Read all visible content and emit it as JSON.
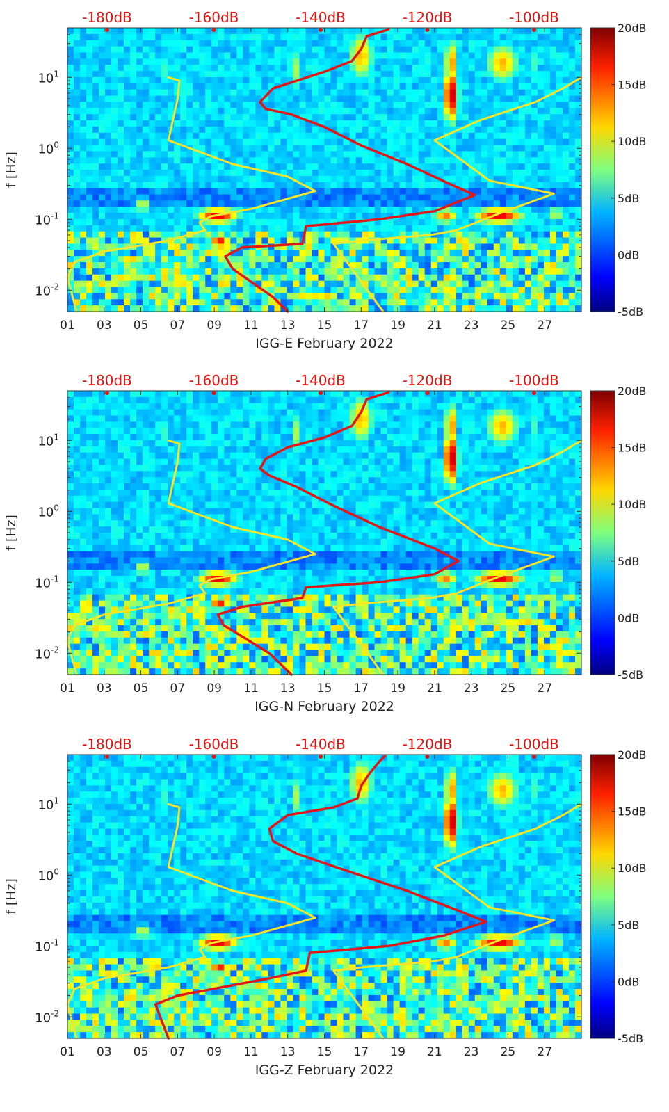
{
  "figure": {
    "colors": {
      "axis": "#333333",
      "top_labels": "#e8110f",
      "red_curve": "#e01818",
      "yellow_curve": "#f5e628"
    }
  },
  "chart_data": [
    {
      "type": "heatmap",
      "name": "IGG-E",
      "xlabel": "IGG-E February 2022",
      "ylabel": "f [Hz]",
      "x_ticks": [
        "01",
        "03",
        "05",
        "07",
        "09",
        "11",
        "13",
        "15",
        "17",
        "19",
        "21",
        "23",
        "25",
        "27"
      ],
      "y_ticks": [
        "10-2",
        "10-1",
        "100",
        "101"
      ],
      "y_log": true,
      "ylim": [
        0.005,
        50
      ],
      "xlim_days": [
        1,
        29
      ],
      "colorbar": {
        "min": -5,
        "max": 20,
        "ticks": [
          "-5dB",
          "0dB",
          "5dB",
          "10dB",
          "15dB",
          "20dB"
        ],
        "colormap": "jet"
      },
      "top_axis_labels": [
        "-180dB",
        "-160dB",
        "-140dB",
        "-120dB",
        "-100dB"
      ],
      "red_curve": {
        "x": [
          13.0,
          12.2,
          10.0,
          9.6,
          10.5,
          13.8,
          14.0,
          18.0,
          21.0,
          23.2,
          22.0,
          19.5,
          17.0,
          15.0,
          13.2,
          11.8,
          11.5,
          12.2,
          13.5,
          15.0,
          16.5,
          17.0,
          17.3,
          18.2,
          18.5
        ],
        "y": [
          0.005,
          0.008,
          0.02,
          0.03,
          0.04,
          0.045,
          0.08,
          0.1,
          0.13,
          0.22,
          0.3,
          0.6,
          1.1,
          2.0,
          3.0,
          3.6,
          4.5,
          7.0,
          9.0,
          12.0,
          17.0,
          25.0,
          38.0,
          45.0,
          48.0
        ]
      },
      "yellow_curve_1": {
        "x": [
          1.5,
          1.0,
          1.4,
          3.0,
          6.5,
          8.5,
          8.2,
          8.8,
          11.0,
          14.5,
          13.0,
          10.0,
          6.5,
          7.0,
          7.1,
          6.5
        ],
        "y": [
          0.005,
          0.015,
          0.025,
          0.035,
          0.05,
          0.07,
          0.09,
          0.11,
          0.14,
          0.25,
          0.4,
          0.6,
          1.3,
          5.0,
          9.0,
          10.0
        ]
      },
      "yellow_curve_2": {
        "x": [
          18.2,
          16.5,
          15.5,
          17.0,
          20.8,
          22.2,
          24.5,
          27.5,
          24.0,
          21.0,
          23.5,
          26.5,
          28.0,
          29.0
        ],
        "y": [
          0.005,
          0.02,
          0.045,
          0.05,
          0.06,
          0.07,
          0.12,
          0.23,
          0.35,
          1.3,
          2.5,
          4.5,
          7.0,
          10.0
        ]
      }
    },
    {
      "type": "heatmap",
      "name": "IGG-N",
      "xlabel": "IGG-N February 2022",
      "ylabel": "f [Hz]",
      "x_ticks": [
        "01",
        "03",
        "05",
        "07",
        "09",
        "11",
        "13",
        "15",
        "17",
        "19",
        "21",
        "23",
        "25",
        "27"
      ],
      "y_ticks": [
        "10-2",
        "10-1",
        "100",
        "101"
      ],
      "y_log": true,
      "ylim": [
        0.005,
        50
      ],
      "xlim_days": [
        1,
        29
      ],
      "colorbar": {
        "min": -5,
        "max": 20,
        "ticks": [
          "-5dB",
          "0dB",
          "5dB",
          "10dB",
          "15dB",
          "20dB"
        ],
        "colormap": "jet"
      },
      "top_axis_labels": [
        "-180dB",
        "-160dB",
        "-140dB",
        "-120dB",
        "-100dB"
      ],
      "red_curve": {
        "x": [
          13.2,
          12.0,
          9.5,
          9.2,
          10.5,
          13.8,
          14.0,
          18.0,
          21.0,
          22.3,
          21.0,
          18.0,
          15.5,
          13.5,
          12.0,
          11.5,
          11.8,
          13.0,
          15.0,
          16.5,
          17.0,
          17.3,
          18.2,
          18.5
        ],
        "y": [
          0.005,
          0.01,
          0.025,
          0.035,
          0.045,
          0.06,
          0.085,
          0.1,
          0.13,
          0.2,
          0.3,
          0.6,
          1.2,
          2.2,
          3.2,
          4.0,
          5.5,
          8.0,
          11.0,
          16.0,
          25.0,
          38.0,
          45.0,
          48.0
        ]
      },
      "yellow_curve_1": {
        "x": [
          1.5,
          1.0,
          1.4,
          3.0,
          6.5,
          8.5,
          8.2,
          8.8,
          11.0,
          14.5,
          13.0,
          10.0,
          6.5,
          7.0,
          7.1,
          6.5
        ],
        "y": [
          0.005,
          0.015,
          0.025,
          0.035,
          0.05,
          0.07,
          0.09,
          0.11,
          0.14,
          0.25,
          0.4,
          0.6,
          1.3,
          5.0,
          9.0,
          10.0
        ]
      },
      "yellow_curve_2": {
        "x": [
          18.2,
          16.5,
          15.5,
          17.0,
          20.8,
          22.2,
          24.5,
          27.5,
          24.0,
          21.0,
          23.5,
          26.5,
          28.0,
          29.0
        ],
        "y": [
          0.005,
          0.02,
          0.045,
          0.05,
          0.06,
          0.07,
          0.12,
          0.23,
          0.35,
          1.3,
          2.5,
          4.5,
          7.0,
          10.0
        ]
      }
    },
    {
      "type": "heatmap",
      "name": "IGG-Z",
      "xlabel": "IGG-Z February 2022",
      "ylabel": "f [Hz]",
      "x_ticks": [
        "01",
        "03",
        "05",
        "07",
        "09",
        "11",
        "13",
        "15",
        "17",
        "19",
        "21",
        "23",
        "25",
        "27"
      ],
      "y_ticks": [
        "10-2",
        "10-1",
        "100",
        "101"
      ],
      "y_log": true,
      "ylim": [
        0.005,
        50
      ],
      "xlim_days": [
        1,
        29
      ],
      "colorbar": {
        "min": -5,
        "max": 20,
        "ticks": [
          "-5dB",
          "0dB",
          "5dB",
          "10dB",
          "15dB",
          "20dB"
        ],
        "colormap": "jet"
      },
      "top_axis_labels": [
        "-180dB",
        "-160dB",
        "-140dB",
        "-120dB",
        "-100dB"
      ],
      "red_curve": {
        "x": [
          6.5,
          6.2,
          5.8,
          7.0,
          9.0,
          12.0,
          14.0,
          14.2,
          18.5,
          21.5,
          23.8,
          22.5,
          19.5,
          16.0,
          13.5,
          12.2,
          12.0,
          13.0,
          15.5,
          16.8,
          17.0,
          17.5,
          18.0,
          18.3
        ],
        "y": [
          0.005,
          0.008,
          0.015,
          0.02,
          0.025,
          0.035,
          0.045,
          0.08,
          0.1,
          0.14,
          0.22,
          0.3,
          0.6,
          1.2,
          2.0,
          3.0,
          4.5,
          7.0,
          9.0,
          12.0,
          18.0,
          28.0,
          40.0,
          48.0
        ]
      },
      "yellow_curve_1": {
        "x": [
          1.5,
          1.0,
          1.4,
          3.0,
          6.5,
          8.5,
          8.2,
          8.8,
          11.0,
          14.5,
          13.0,
          10.0,
          6.5,
          7.0,
          7.1,
          6.5
        ],
        "y": [
          0.005,
          0.015,
          0.025,
          0.035,
          0.05,
          0.07,
          0.09,
          0.11,
          0.14,
          0.25,
          0.4,
          0.6,
          1.3,
          5.0,
          9.0,
          10.0
        ]
      },
      "yellow_curve_2": {
        "x": [
          18.2,
          16.5,
          15.5,
          17.0,
          20.8,
          22.2,
          24.5,
          27.5,
          24.0,
          21.0,
          23.5,
          26.5,
          28.0,
          29.0
        ],
        "y": [
          0.005,
          0.02,
          0.045,
          0.05,
          0.06,
          0.07,
          0.12,
          0.23,
          0.35,
          1.3,
          2.5,
          4.5,
          7.0,
          10.0
        ]
      }
    }
  ]
}
